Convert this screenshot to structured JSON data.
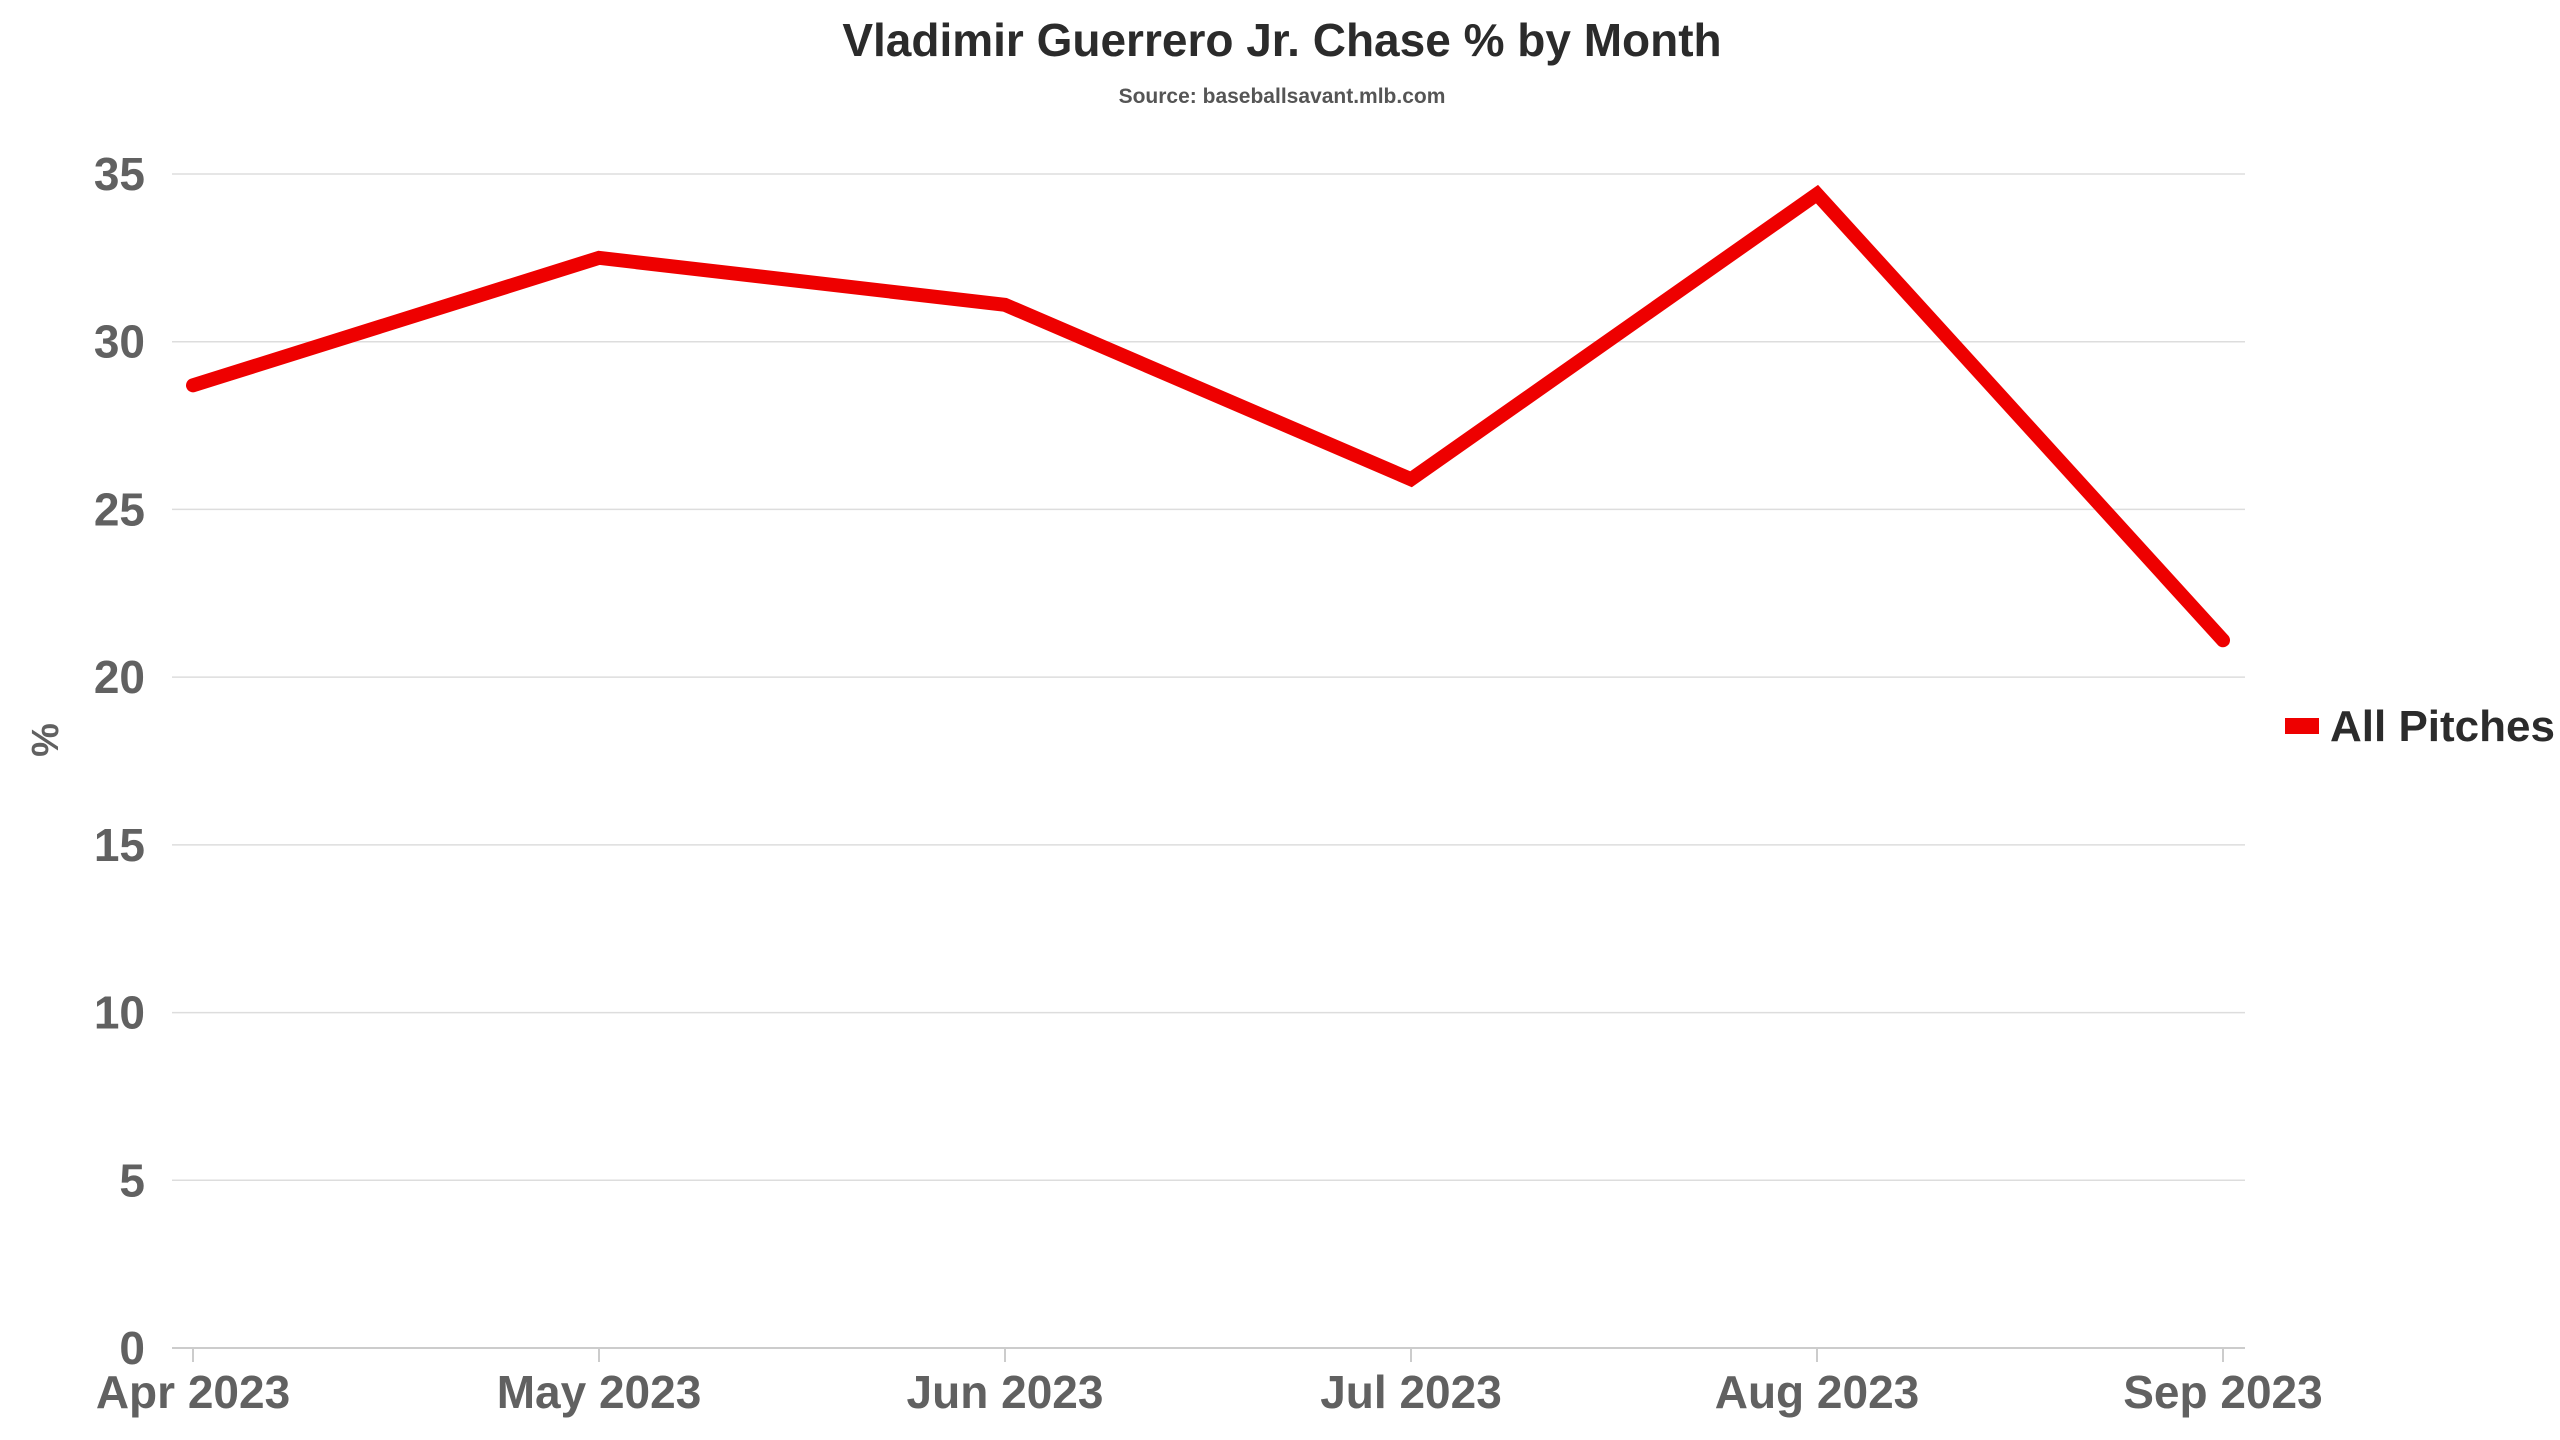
{
  "chart_data": {
    "type": "line",
    "title": "Vladimir Guerrero Jr. Chase % by Month",
    "subtitle": "Source: baseballsavant.mlb.com",
    "xlabel": "",
    "ylabel": "%",
    "categories": [
      "Apr 2023",
      "May 2023",
      "Jun 2023",
      "Jul 2023",
      "Aug 2023",
      "Sep 2023"
    ],
    "yticks": [
      0,
      5,
      10,
      15,
      20,
      25,
      30,
      35
    ],
    "ylim": [
      0,
      35
    ],
    "grid": true,
    "legend_position": "right",
    "series": [
      {
        "name": "All Pitches",
        "color": "#ee0000",
        "values": [
          28.7,
          32.5,
          31.1,
          25.9,
          34.4,
          21.1
        ]
      }
    ]
  }
}
